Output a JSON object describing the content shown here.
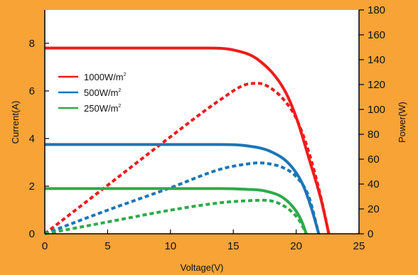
{
  "chart_data": {
    "type": "line",
    "xlabel": "Voltage(V)",
    "ylabel": "Current(A)",
    "y2label": "Power(W)",
    "xlim": [
      0,
      25
    ],
    "ylim": [
      0,
      9.4
    ],
    "y2lim": [
      0,
      180
    ],
    "x_ticks": [
      "0",
      "5",
      "10",
      "15",
      "20",
      "25"
    ],
    "y_ticks": [
      "0",
      "2",
      "4",
      "6",
      "8"
    ],
    "y2_ticks": [
      "0",
      "20",
      "40",
      "60",
      "80",
      "100",
      "120",
      "140",
      "160",
      "180"
    ],
    "grid": false,
    "legend_position": "left",
    "series": [
      {
        "name": "1000W/m",
        "name_sup": "2",
        "color": "#EE1C1C",
        "current": [
          [
            0,
            7.8
          ],
          [
            13,
            7.8
          ],
          [
            15,
            7.72
          ],
          [
            17,
            7.3
          ],
          [
            19,
            6.1
          ],
          [
            20,
            4.9
          ],
          [
            21,
            3.2
          ],
          [
            22,
            1.4
          ],
          [
            22.6,
            0
          ]
        ],
        "power": [
          [
            0,
            0
          ],
          [
            5,
            39
          ],
          [
            10,
            78
          ],
          [
            14,
            108
          ],
          [
            16,
            120
          ],
          [
            17,
            121
          ],
          [
            18,
            117
          ],
          [
            19,
            108
          ],
          [
            20,
            93
          ],
          [
            21,
            66
          ],
          [
            22,
            28
          ],
          [
            22.6,
            0
          ]
        ]
      },
      {
        "name": "500W/m",
        "name_sup": "2",
        "color": "#1A76B8",
        "current": [
          [
            0,
            3.75
          ],
          [
            14,
            3.75
          ],
          [
            16,
            3.7
          ],
          [
            18,
            3.45
          ],
          [
            19.5,
            2.9
          ],
          [
            20.5,
            2.1
          ],
          [
            21.2,
            1.1
          ],
          [
            21.8,
            0
          ]
        ],
        "power": [
          [
            0,
            0
          ],
          [
            5,
            19
          ],
          [
            10,
            37
          ],
          [
            14,
            52
          ],
          [
            16,
            56
          ],
          [
            17,
            57
          ],
          [
            18,
            56
          ],
          [
            19,
            53
          ],
          [
            20,
            46
          ],
          [
            21,
            30
          ],
          [
            21.8,
            0
          ]
        ]
      },
      {
        "name": "250W/m",
        "name_sup": "2",
        "color": "#2EAA4A",
        "current": [
          [
            0,
            1.9
          ],
          [
            14,
            1.9
          ],
          [
            16,
            1.87
          ],
          [
            17.5,
            1.8
          ],
          [
            19,
            1.5
          ],
          [
            20,
            0.95
          ],
          [
            20.5,
            0.45
          ],
          [
            20.8,
            0
          ]
        ],
        "power": [
          [
            0,
            0
          ],
          [
            5,
            9.5
          ],
          [
            10,
            19
          ],
          [
            14,
            25
          ],
          [
            16,
            26.5
          ],
          [
            17.5,
            27
          ],
          [
            18.5,
            25
          ],
          [
            19.5,
            19
          ],
          [
            20.3,
            10
          ],
          [
            20.8,
            0
          ]
        ]
      }
    ]
  }
}
